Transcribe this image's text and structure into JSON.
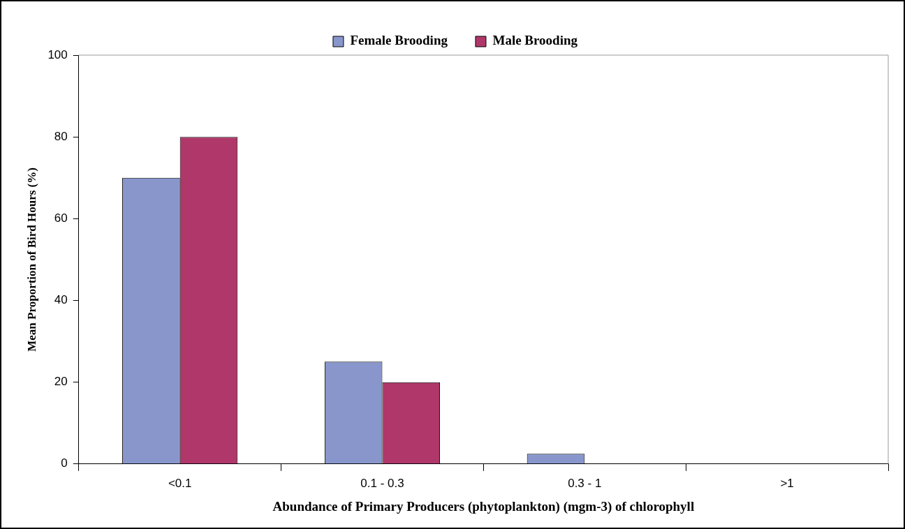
{
  "chart_data": {
    "type": "bar",
    "xlabel": "Abundance of Primary Producers (phytoplankton) (mgm-3) of chlorophyll",
    "ylabel": "Mean Proportion of Bird Hours (%)",
    "categories": [
      "<0.1",
      "0.1 - 0.3",
      "0.3 - 1",
      ">1"
    ],
    "series": [
      {
        "name": "Female Brooding",
        "color": "#8896cc",
        "values": [
          70,
          25,
          2.5,
          0
        ]
      },
      {
        "name": "Male Brooding",
        "color": "#b0376a",
        "values": [
          80,
          20,
          0,
          0
        ]
      }
    ],
    "ylim": [
      0,
      100
    ],
    "yticks": [
      0,
      20,
      40,
      60,
      80,
      100
    ],
    "grid": false,
    "legend": "top"
  }
}
